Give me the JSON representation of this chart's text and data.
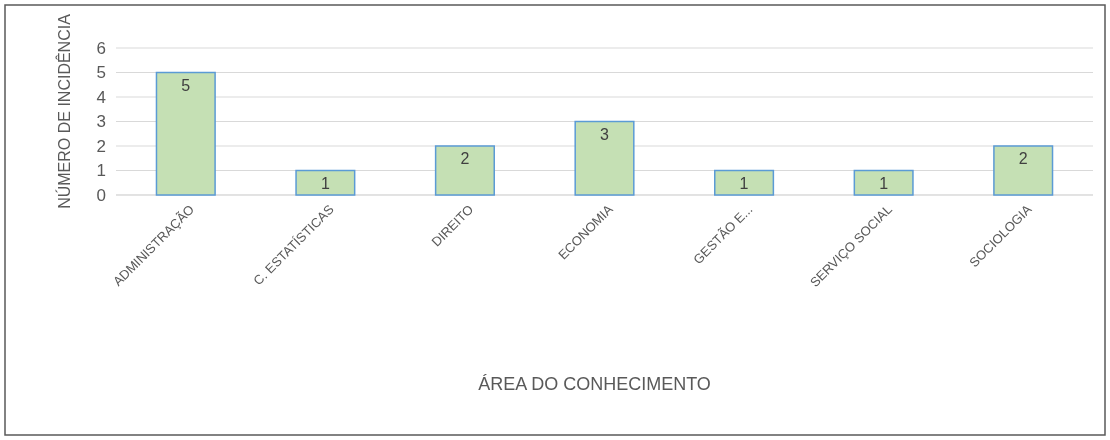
{
  "chart_data": {
    "type": "bar",
    "xlabel": "ÁREA DO CONHECIMENTO",
    "ylabel": "NÚMERO DE INCIDÊNCIA",
    "categories": [
      "ADMINISTRAÇÃO",
      "C. ESTATÍSTICAS",
      "DIREITO",
      "ECONOMIA",
      "GESTÃO E...",
      "SERVIÇO SOCIAL",
      "SOCIOLOGIA"
    ],
    "values": [
      5,
      1,
      2,
      3,
      1,
      1,
      2
    ],
    "color": "#c5e0b4",
    "ylim": [
      0,
      6
    ],
    "yticks": [
      0,
      1,
      2,
      3,
      4,
      5,
      6
    ],
    "grid": "y",
    "data_labels": true
  }
}
